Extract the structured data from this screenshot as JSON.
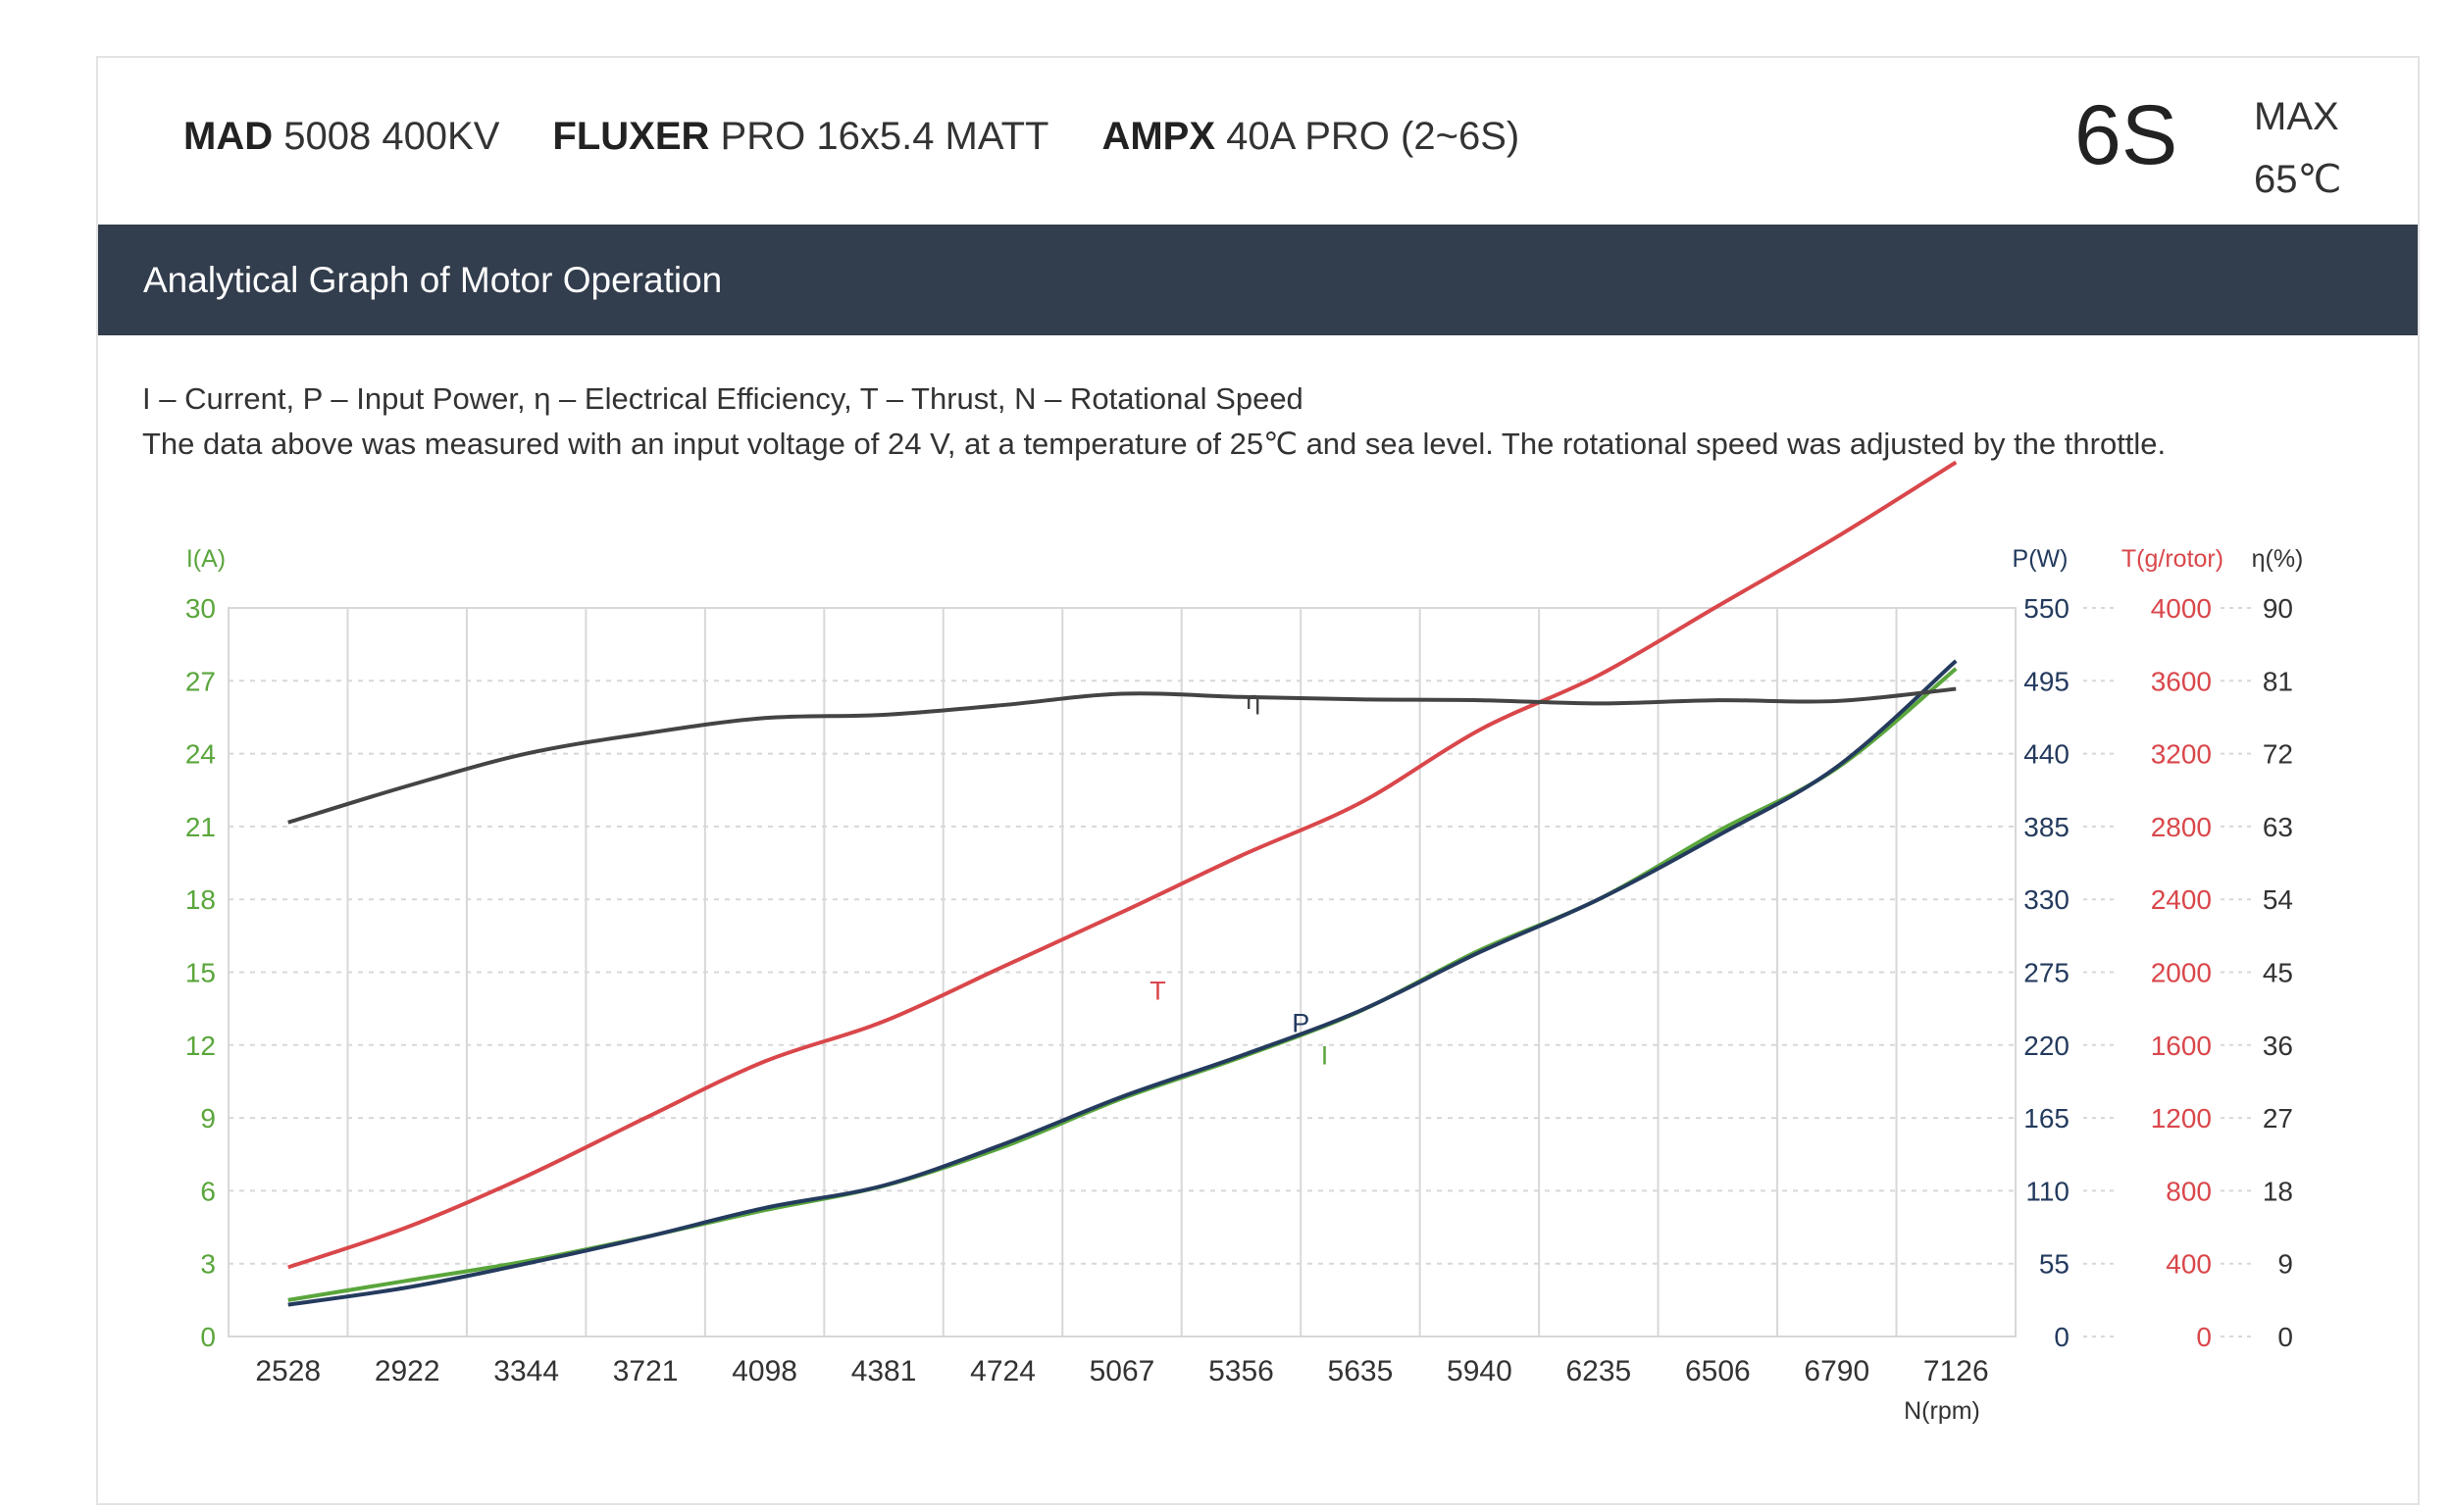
{
  "header": {
    "motor_brand": "MAD",
    "motor_model": "5008 400KV",
    "prop_brand": "FLUXER",
    "prop_model": "PRO 16x5.4 MATT",
    "esc_brand": "AMPX",
    "esc_model": "40A PRO (2~6S)",
    "cells": "6S",
    "max_label": "MAX",
    "max_temp": "65℃"
  },
  "section_title": "Analytical Graph of Motor Operation",
  "notes": {
    "legend_line": "I – Current, P – Input Power, η – Electrical Efficiency, T – Thrust,   N – Rotational Speed",
    "conditions_line": "The data above was measured with an input voltage of 24 V, at a temperature of 25℃ and sea level. The rotational speed was adjusted by the throttle."
  },
  "colors": {
    "current": "#5aa63c",
    "power": "#243b5e",
    "thrust": "#d9474b",
    "efficiency": "#444444",
    "axis_text": "#333333",
    "grid": "#d8d8d8",
    "header_bar": "#323d4d"
  },
  "chart_data": {
    "type": "line",
    "x": [
      "2528",
      "2922",
      "3344",
      "3721",
      "4098",
      "4381",
      "4724",
      "5067",
      "5356",
      "5635",
      "5940",
      "6235",
      "6506",
      "6790",
      "7126"
    ],
    "xlabel": "N(rpm)",
    "axes": {
      "current": {
        "label": "I(A)",
        "ticks": [
          "0",
          "3",
          "6",
          "9",
          "12",
          "15",
          "18",
          "21",
          "24",
          "27",
          "30"
        ],
        "range": [
          0,
          30
        ]
      },
      "power": {
        "label": "P(W)",
        "ticks": [
          "0",
          "55",
          "110",
          "165",
          "220",
          "275",
          "330",
          "385",
          "440",
          "495",
          "550"
        ],
        "range": [
          0,
          550
        ]
      },
      "thrust": {
        "label": "T(g/rotor)",
        "ticks": [
          "0",
          "400",
          "800",
          "1200",
          "1600",
          "2000",
          "2400",
          "2800",
          "3200",
          "3600",
          "4000"
        ],
        "range": [
          0,
          4000
        ]
      },
      "efficiency": {
        "label": "η(%)",
        "ticks": [
          "0",
          "9",
          "18",
          "27",
          "36",
          "45",
          "54",
          "63",
          "72",
          "81",
          "90"
        ],
        "range": [
          0,
          90
        ]
      }
    },
    "series": [
      {
        "name": "I",
        "axis": "current",
        "label": "I",
        "label_at": 8.7,
        "label_value": 11.2,
        "values": [
          1.5,
          2.3,
          3.1,
          4.1,
          5.2,
          6.2,
          7.8,
          9.8,
          11.5,
          13.4,
          15.9,
          18.0,
          20.8,
          23.4,
          27.5
        ]
      },
      {
        "name": "P",
        "axis": "power",
        "label": "P",
        "label_at": 8.5,
        "label_value": 230,
        "values": [
          24,
          37,
          55,
          75,
          97,
          114,
          145,
          181,
          212,
          246,
          290,
          330,
          378,
          430,
          510
        ]
      },
      {
        "name": "T",
        "axis": "thrust",
        "label": "T",
        "label_at": 7.3,
        "label_value": 1850,
        "values": [
          380,
          600,
          880,
          1200,
          1510,
          1730,
          2030,
          2330,
          2640,
          2930,
          3330,
          3630,
          4010,
          4390,
          4800
        ]
      },
      {
        "name": "η",
        "axis": "efficiency",
        "label": "η",
        "label_at": 8.1,
        "label_value": 77.5,
        "values": [
          63.5,
          68.0,
          72.0,
          74.5,
          76.4,
          76.8,
          78.0,
          79.4,
          79.0,
          78.7,
          78.6,
          78.2,
          78.6,
          78.5,
          80.0
        ]
      }
    ],
    "grid": true
  }
}
